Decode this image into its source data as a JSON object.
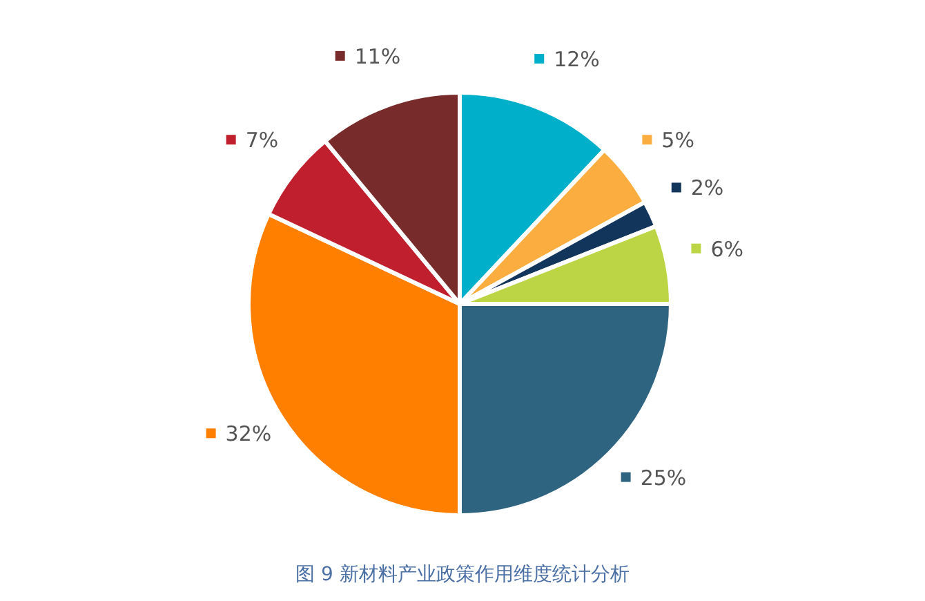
{
  "chart_data": {
    "type": "pie",
    "title": "图 9 新材料产业政策作用维度统计分析",
    "categories": [
      null,
      null,
      null,
      null,
      null,
      null,
      null,
      null
    ],
    "values": [
      12,
      5,
      2,
      6,
      25,
      32,
      7,
      11
    ],
    "value_labels": [
      "12%",
      "5%",
      "2%",
      "6%",
      "25%",
      "32%",
      "7%",
      "11%"
    ],
    "colors": [
      "#00b0ca",
      "#fbad3f",
      "#12355b",
      "#bcd544",
      "#2e6480",
      "#ff7f00",
      "#c01f2e",
      "#772b2b"
    ]
  }
}
